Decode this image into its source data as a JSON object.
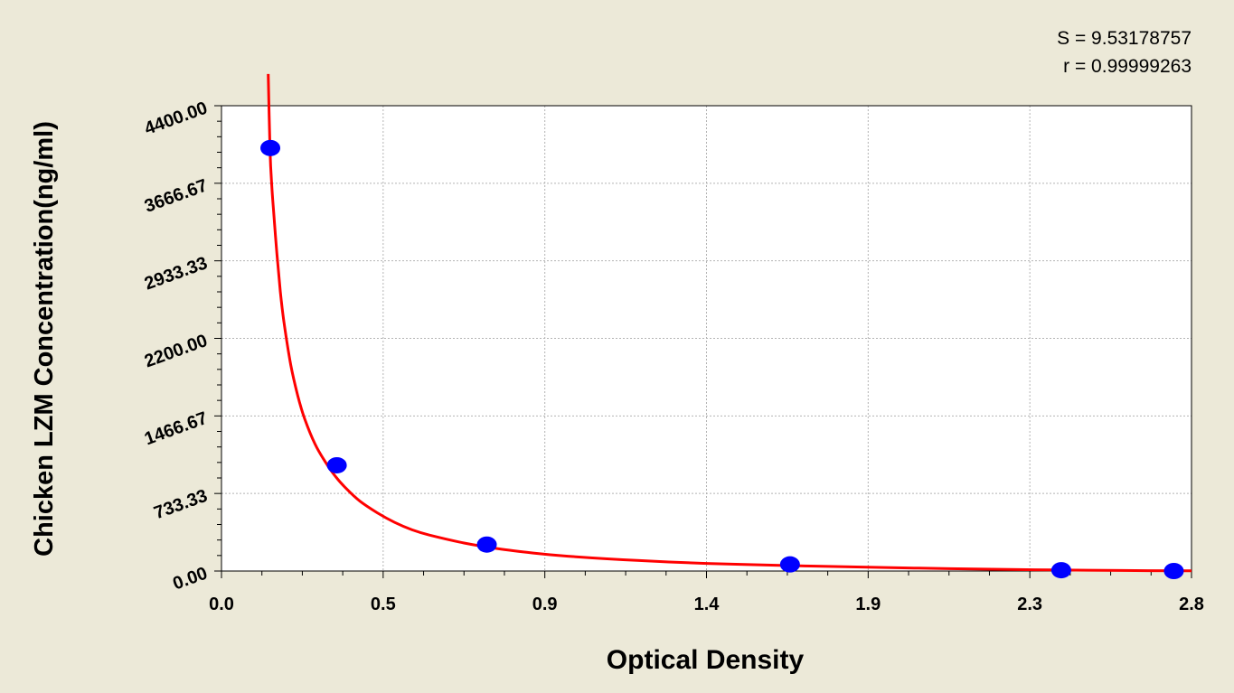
{
  "colors": {
    "background": "#ece9d8",
    "plot_area": "#ffffff",
    "curve": "#ff0000",
    "points": "#0000ff",
    "grid": "#b4b4b4"
  },
  "stats": {
    "s_label": "S = 9.53178757",
    "r_label": "r = 0.99999263"
  },
  "chart_data": {
    "type": "scatter",
    "title": "",
    "xlabel": "Optical Density",
    "ylabel": "Chicken LZM Concentration(ng/ml)",
    "xlim": [
      0.0,
      2.8
    ],
    "ylim": [
      0.0,
      4400.0
    ],
    "x_ticks": [
      "0.0",
      "0.5",
      "0.9",
      "1.4",
      "1.9",
      "2.3",
      "2.8"
    ],
    "y_ticks": [
      "0.00",
      "733.33",
      "1466.67",
      "2200.00",
      "2933.33",
      "3666.67",
      "4400.00"
    ],
    "grid": true,
    "series": [
      {
        "kind": "points",
        "x": [
          0.141,
          0.333,
          0.766,
          1.641,
          2.424,
          2.749
        ],
        "y": [
          4000,
          1000,
          250,
          62.5,
          7.8,
          0
        ]
      },
      {
        "kind": "fit-curve",
        "x": [
          0.135,
          0.14,
          0.145,
          0.15,
          0.16,
          0.17,
          0.18,
          0.2,
          0.22,
          0.24,
          0.27,
          0.3,
          0.33,
          0.36,
          0.4,
          0.45,
          0.5,
          0.55,
          0.6,
          0.7,
          0.8,
          0.9,
          1.0,
          1.2,
          1.4,
          1.6,
          1.8,
          2.0,
          2.2,
          2.4,
          2.6,
          2.8
        ],
        "y": [
          4700,
          3980,
          3650,
          3420,
          3000,
          2640,
          2360,
          1950,
          1660,
          1440,
          1200,
          1030,
          890,
          780,
          660,
          550,
          460,
          390,
          340,
          265,
          210,
          170,
          140,
          100,
          72,
          55,
          40,
          28,
          18,
          10,
          5,
          2
        ]
      }
    ]
  }
}
